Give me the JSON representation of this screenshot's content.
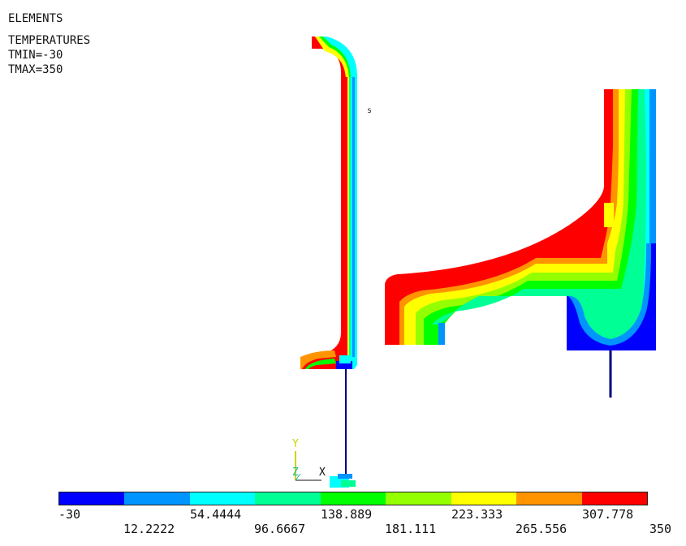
{
  "header": {
    "line1": "ELEMENTS",
    "line2": "TEMPERATURES",
    "line3": "TMIN=-30",
    "line4": "TMAX=350"
  },
  "view_label": "s",
  "triad": {
    "x_label": "X",
    "y_label": "Y",
    "z_label": "Z"
  },
  "legend": {
    "colors": [
      "#0000ff",
      "#0094ff",
      "#00ffff",
      "#00ff94",
      "#00ff00",
      "#94ff00",
      "#ffff00",
      "#ff9400",
      "#ff0000"
    ],
    "ticks_top": [
      "-30",
      "54.4444",
      "138.889",
      "223.333",
      "307.778"
    ],
    "ticks_bottom": [
      "12.2222",
      "96.6667",
      "181.111",
      "265.556",
      "350"
    ]
  }
}
